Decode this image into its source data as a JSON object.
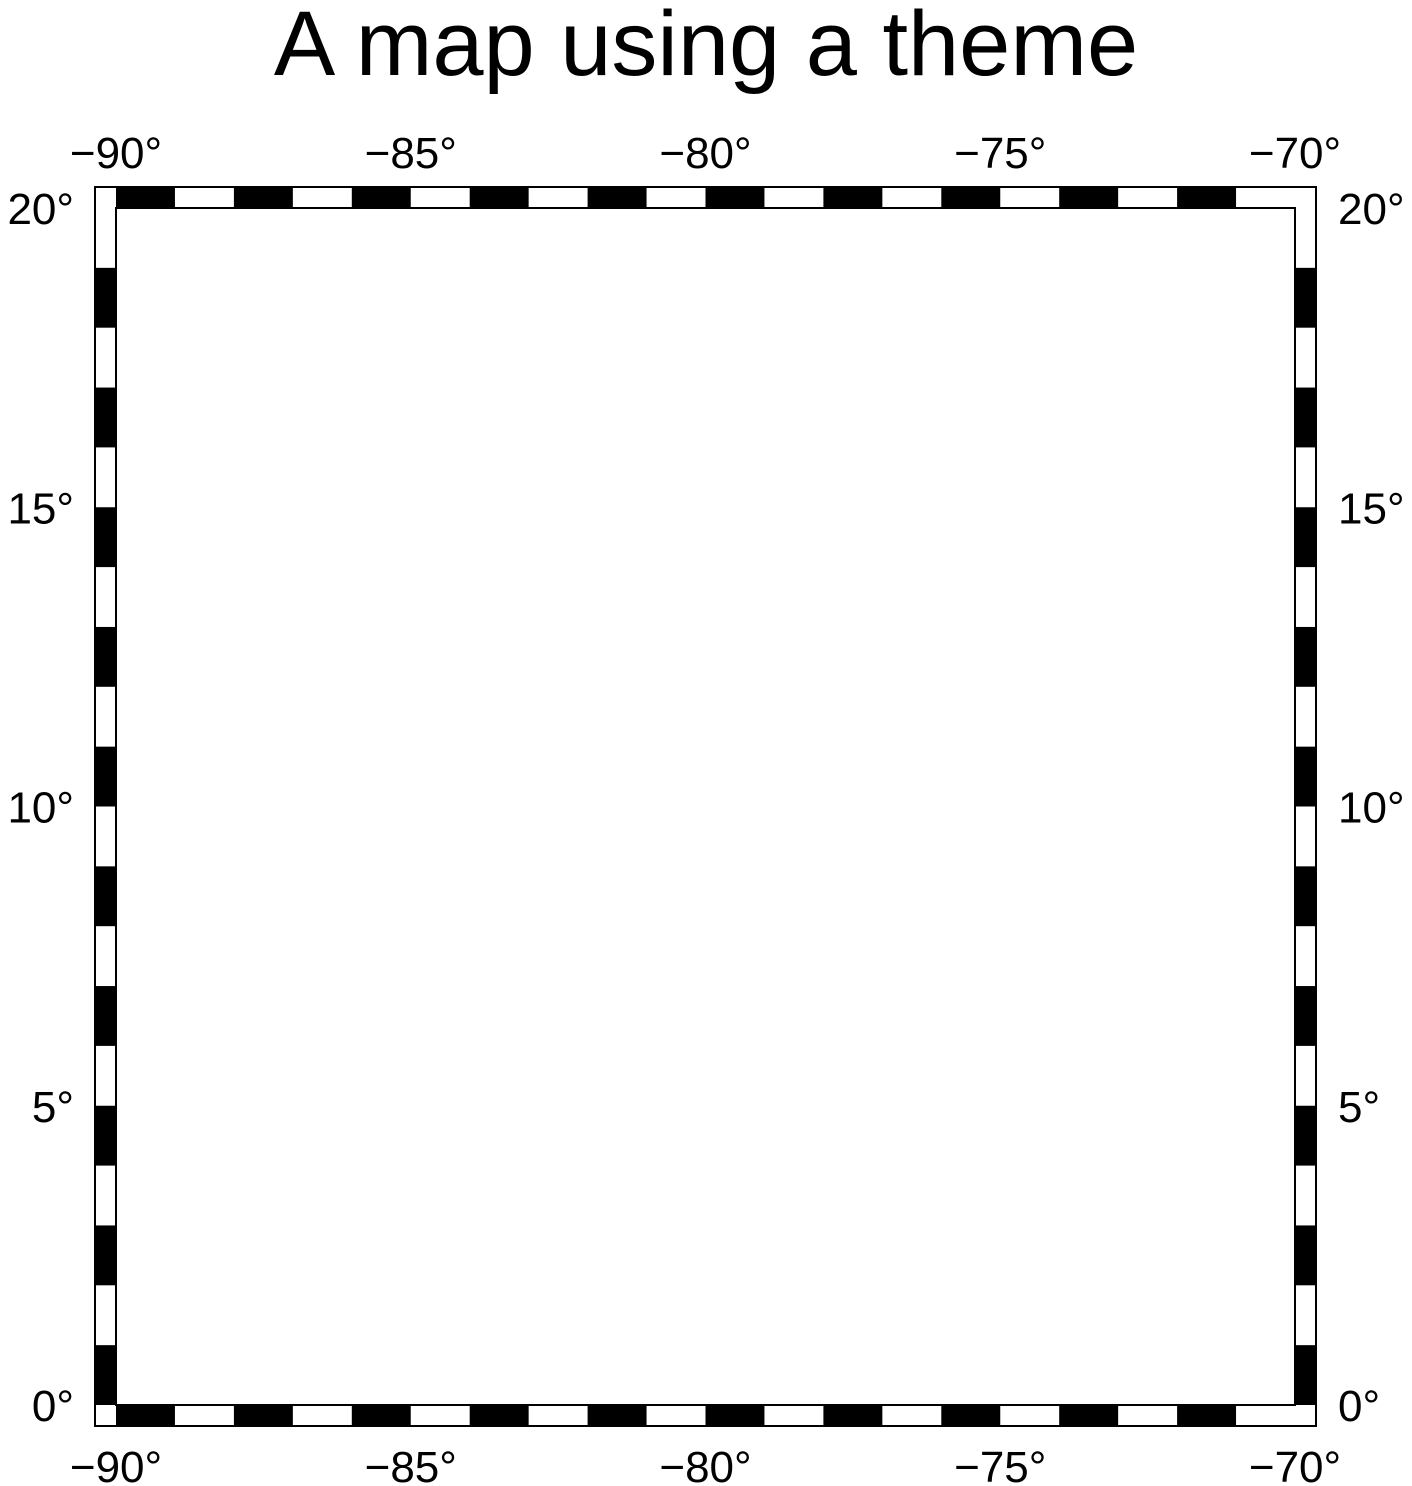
{
  "title": "A map using a theme",
  "map": {
    "region": {
      "lon_min": -90,
      "lon_max": -70,
      "lat_min": 0,
      "lat_max": 20
    },
    "frame_style": "fancy checkered (alternating black and white)",
    "frame_tick_interval_deg": 1,
    "gridline_interval_deg": 5,
    "grid": true,
    "colors": {
      "frame_dark": "#000000",
      "frame_light": "#ffffff",
      "grid": "#000000",
      "background": "#ffffff"
    },
    "lon_ticks": [
      {
        "value": -90,
        "label": "−90°"
      },
      {
        "value": -85,
        "label": "−85°"
      },
      {
        "value": -80,
        "label": "−80°"
      },
      {
        "value": -75,
        "label": "−75°"
      },
      {
        "value": -70,
        "label": "−70°"
      }
    ],
    "lat_ticks": [
      {
        "value": 0,
        "label": "0°"
      },
      {
        "value": 5,
        "label": "5°"
      },
      {
        "value": 10,
        "label": "10°"
      },
      {
        "value": 15,
        "label": "15°"
      },
      {
        "value": 20,
        "label": "20°"
      }
    ]
  }
}
